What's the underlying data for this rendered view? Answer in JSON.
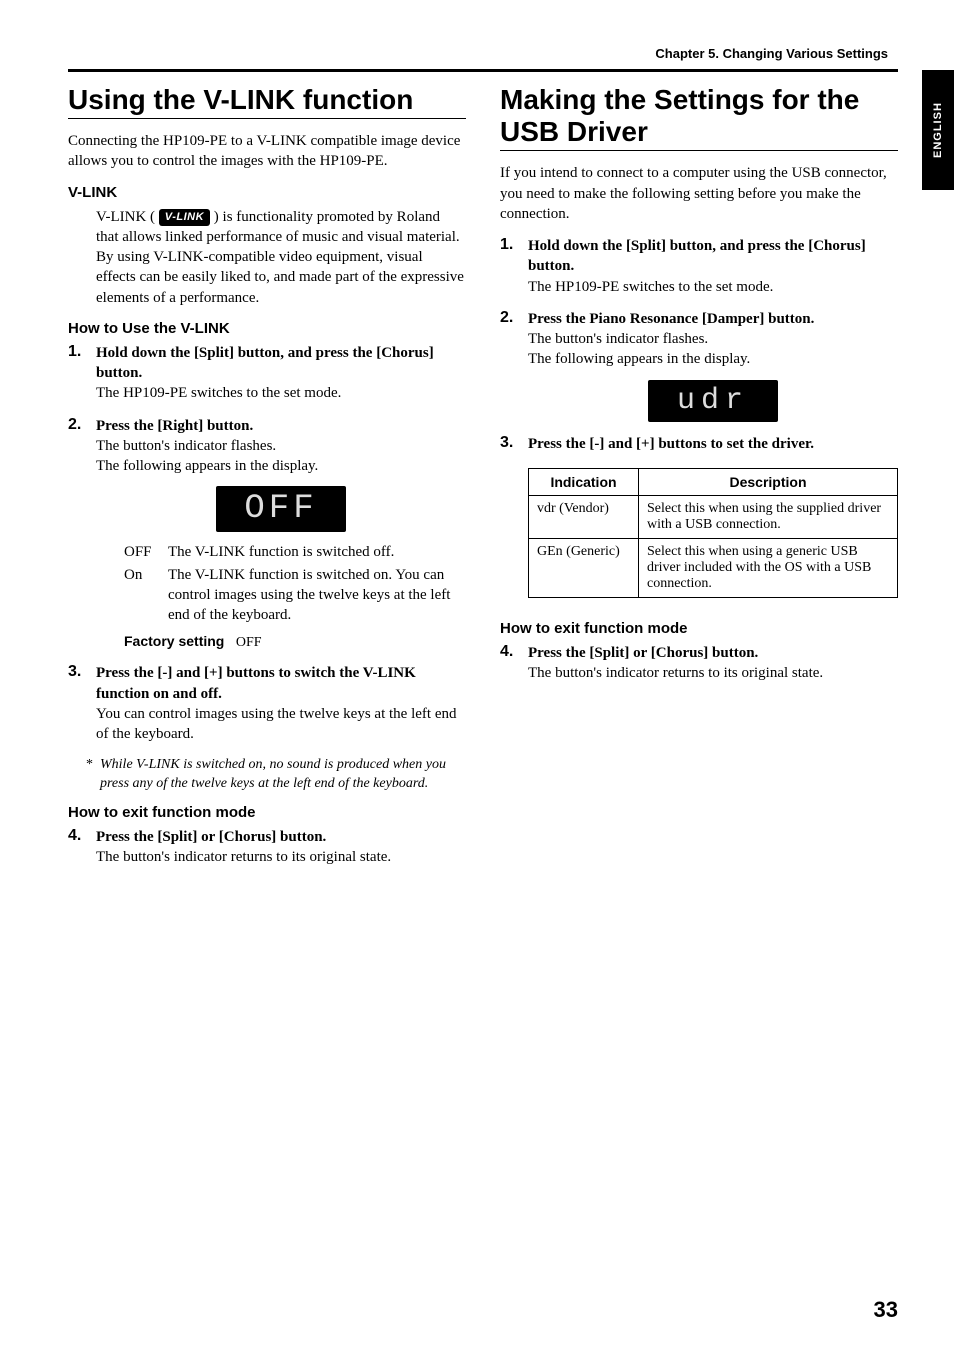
{
  "chapter_header": "Chapter 5. Changing Various Settings",
  "side_tab": "ENGLISH",
  "page_number": "33",
  "left": {
    "title": "Using the V-LINK function",
    "intro": "Connecting the HP109-PE to a V-LINK compatible image device allows you to control the images with the HP109-PE.",
    "vlink_heading": "V-LINK",
    "vlink_badge": "V-LINK",
    "vlink_text_a": "V-LINK (",
    "vlink_text_b": ") is functionality promoted by Roland that allows linked performance of music and visual material. By using V-LINK-compatible video equipment, visual effects can be easily liked to, and made part of the expressive elements of a performance.",
    "howto_heading": "How to Use the V-LINK",
    "step1_head": "Hold down the [Split] button, and press the [Chorus] button.",
    "step1_sub": "The HP109-PE switches to the set mode.",
    "step2_head": "Press the [Right] button.",
    "step2_sub1": "The button's indicator flashes.",
    "step2_sub2": "The following appears in the display.",
    "display_text": "OFF",
    "opt_off_k": "OFF",
    "opt_off_v": "The V-LINK function is switched off.",
    "opt_on_k": "On",
    "opt_on_v": "The V-LINK function is switched on. You can control images using the twelve keys at the left end of the keyboard.",
    "factory_label": "Factory setting",
    "factory_value": "OFF",
    "step3_head": "Press the [-] and [+] buttons to switch the V-LINK function on and off.",
    "step3_sub": "You can control images using the twelve keys at the left end of the keyboard.",
    "note": "While V-LINK is switched on, no sound is produced when you press any of the twelve keys at the left end of the keyboard.",
    "exit_heading": "How to exit function mode",
    "step4_head": "Press the [Split] or [Chorus] button.",
    "step4_sub": "The button's indicator returns to its original state."
  },
  "right": {
    "title": "Making the Settings for the USB Driver",
    "intro": "If you intend to connect to a computer using the USB connector, you need to make the following setting before you make the connection.",
    "step1_head": "Hold down the [Split] button, and press the [Chorus] button.",
    "step1_sub": "The HP109-PE switches to the set mode.",
    "step2_head": "Press the Piano Resonance [Damper] button.",
    "step2_sub1": "The button's indicator flashes.",
    "step2_sub2": "The following appears in the display.",
    "display_text": "udr",
    "step3_head": "Press the [-] and [+] buttons to set the driver.",
    "table": {
      "col1": "Indication",
      "col2": "Description",
      "r1c1": "vdr (Vendor)",
      "r1c2": "Select this when using the supplied driver with a USB connection.",
      "r2c1": "GEn (Generic)",
      "r2c2": "Select this when using a generic USB driver included with the OS with a USB connection."
    },
    "exit_heading": "How to exit function mode",
    "step4_head": "Press the [Split] or [Chorus] button.",
    "step4_sub": "The button's indicator returns to its original state."
  }
}
